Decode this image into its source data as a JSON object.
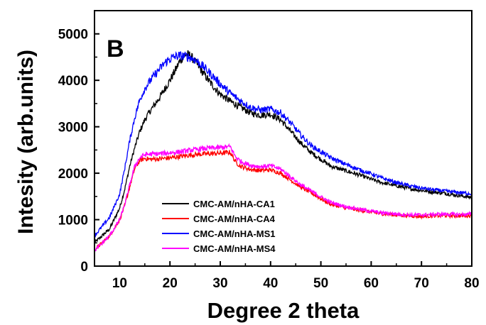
{
  "chart_data": {
    "type": "line",
    "panel_label": "B",
    "xlabel": "Degree 2 theta",
    "ylabel": "Intesity (arb.units)",
    "xlim": [
      5,
      80
    ],
    "ylim": [
      0,
      5500
    ],
    "xticks": [
      10,
      20,
      30,
      40,
      50,
      60,
      70,
      80
    ],
    "yticks": [
      0,
      1000,
      2000,
      3000,
      4000,
      5000
    ],
    "legend_position": "lower-left",
    "series": [
      {
        "name": "CMC-AM/nHA-CA1",
        "color": "#000000",
        "x": [
          5,
          8,
          10,
          11,
          12,
          13,
          14,
          15,
          16,
          17,
          18,
          19,
          20,
          21,
          22,
          23,
          24,
          25,
          26,
          28,
          30,
          32,
          34,
          36,
          38,
          40,
          42,
          44,
          46,
          48,
          50,
          52,
          55,
          58,
          60,
          62,
          65,
          68,
          70,
          72,
          75,
          78,
          80
        ],
        "y": [
          500,
          800,
          1250,
          1650,
          2150,
          2550,
          2900,
          3150,
          3330,
          3480,
          3640,
          3820,
          4000,
          4200,
          4420,
          4560,
          4540,
          4400,
          4250,
          3950,
          3700,
          3550,
          3420,
          3300,
          3250,
          3270,
          3150,
          2900,
          2650,
          2450,
          2300,
          2150,
          2050,
          1950,
          1870,
          1800,
          1730,
          1660,
          1630,
          1600,
          1560,
          1510,
          1480
        ]
      },
      {
        "name": "CMC-AM/nHA-CA4",
        "color": "#ff0000",
        "x": [
          5,
          8,
          10,
          11,
          12,
          13,
          14,
          15,
          16,
          18,
          20,
          22,
          24,
          26,
          28,
          30,
          31,
          32,
          33,
          34,
          36,
          38,
          40,
          42,
          44,
          46,
          48,
          50,
          52,
          55,
          58,
          60,
          62,
          65,
          68,
          70,
          72,
          75,
          78,
          80
        ],
        "y": [
          350,
          650,
          1000,
          1300,
          1700,
          2100,
          2270,
          2320,
          2300,
          2310,
          2330,
          2360,
          2390,
          2410,
          2420,
          2430,
          2440,
          2450,
          2250,
          2150,
          2080,
          2060,
          2070,
          2000,
          1850,
          1700,
          1580,
          1450,
          1330,
          1250,
          1200,
          1160,
          1130,
          1100,
          1080,
          1070,
          1080,
          1090,
          1080,
          1090
        ]
      },
      {
        "name": "CMC-AM/nHA-MS1",
        "color": "#0000ff",
        "x": [
          5,
          8,
          10,
          11,
          12,
          13,
          14,
          15,
          16,
          17,
          18,
          19,
          20,
          21,
          22,
          23,
          24,
          25,
          26,
          28,
          30,
          32,
          34,
          36,
          38,
          40,
          42,
          44,
          46,
          48,
          50,
          52,
          55,
          58,
          60,
          62,
          65,
          68,
          70,
          72,
          75,
          78,
          80
        ],
        "y": [
          650,
          1050,
          1550,
          2100,
          2700,
          3200,
          3580,
          3820,
          3980,
          4120,
          4250,
          4380,
          4460,
          4510,
          4530,
          4520,
          4490,
          4440,
          4360,
          4150,
          3920,
          3720,
          3560,
          3420,
          3360,
          3380,
          3300,
          3080,
          2820,
          2600,
          2460,
          2330,
          2190,
          2060,
          1990,
          1900,
          1800,
          1720,
          1680,
          1650,
          1610,
          1580,
          1560
        ]
      },
      {
        "name": "CMC-AM/nHA-MS4",
        "color": "#ff00ff",
        "x": [
          5,
          8,
          10,
          11,
          12,
          13,
          14,
          15,
          16,
          18,
          20,
          22,
          24,
          26,
          28,
          30,
          31,
          32,
          33,
          34,
          36,
          38,
          40,
          42,
          44,
          46,
          48,
          50,
          52,
          55,
          58,
          60,
          62,
          65,
          68,
          70,
          72,
          75,
          78,
          80
        ],
        "y": [
          330,
          650,
          1000,
          1320,
          1750,
          2150,
          2330,
          2400,
          2410,
          2420,
          2440,
          2460,
          2490,
          2520,
          2540,
          2550,
          2560,
          2570,
          2360,
          2260,
          2170,
          2140,
          2160,
          2090,
          1920,
          1750,
          1620,
          1490,
          1370,
          1280,
          1220,
          1180,
          1150,
          1120,
          1100,
          1100,
          1110,
          1120,
          1110,
          1120
        ]
      }
    ]
  }
}
